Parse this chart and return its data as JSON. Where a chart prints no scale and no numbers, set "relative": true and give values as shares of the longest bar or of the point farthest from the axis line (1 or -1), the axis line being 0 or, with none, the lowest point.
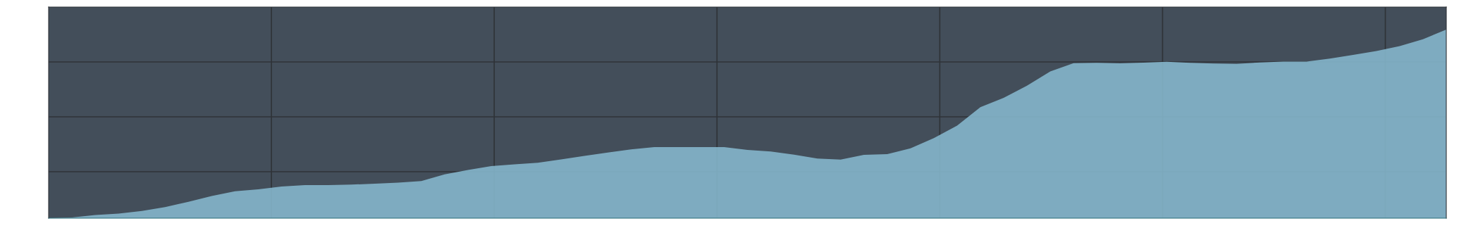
{
  "chart_data": {
    "type": "area",
    "relative": true,
    "grid": true,
    "tick_labels": false,
    "categories": [
      null,
      null,
      null,
      null,
      null,
      null,
      null,
      null,
      null,
      null,
      null,
      null,
      null,
      null,
      null,
      null,
      null,
      null,
      null,
      null,
      null,
      null,
      null,
      null,
      null,
      null,
      null,
      null,
      null,
      null,
      null,
      null,
      null,
      null,
      null,
      null,
      null,
      null,
      null,
      null,
      null,
      null,
      null,
      null,
      null,
      null,
      null,
      null,
      null,
      null,
      null,
      null,
      null,
      null,
      null,
      null,
      null,
      null,
      null,
      null,
      null
    ],
    "series": [
      {
        "color": "#86b8ce",
        "values": [
          0,
          0.004,
          0.017,
          0.024,
          0.038,
          0.059,
          0.087,
          0.118,
          0.143,
          0.153,
          0.168,
          0.175,
          0.175,
          0.178,
          0.183,
          0.188,
          0.197,
          0.232,
          0.256,
          0.276,
          0.285,
          0.294,
          0.312,
          0.33,
          0.348,
          0.365,
          0.377,
          0.377,
          0.377,
          0.377,
          0.362,
          0.354,
          0.337,
          0.316,
          0.311,
          0.336,
          0.34,
          0.37,
          0.424,
          0.491,
          0.589,
          0.638,
          0.702,
          0.778,
          0.822,
          0.824,
          0.821,
          0.825,
          0.829,
          0.824,
          0.82,
          0.818,
          0.826,
          0.83,
          0.83,
          0.846,
          0.866,
          0.886,
          0.912,
          0.949,
          1.0
        ]
      }
    ]
  }
}
